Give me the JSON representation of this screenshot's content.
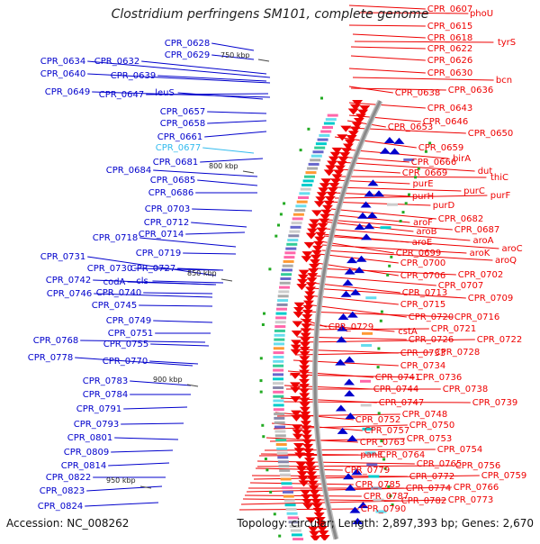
{
  "title": "Clostridium perfringens SM101, complete genome",
  "footer": {
    "accession": "Accession: NC_008262",
    "summary": "Topology: circular; Length: 2,897,393 bp; Genes: 2,670"
  },
  "colors": {
    "left_label": "#0000cc",
    "right_label": "#ee0000",
    "highlight_label": "#33bbee",
    "backbone": "#8a8a8a",
    "forward_arrow": "#0000cc",
    "reverse_arrow": "#ee0000",
    "misc_feature": "#22aa22"
  },
  "scale_ticks": [
    "750 kbp",
    "800 kbp",
    "850 kbp",
    "900 kbp",
    "950 kbp"
  ],
  "left_labels": [
    "CPR_0628",
    "CPR_0629",
    "CPR_0634",
    "CPR_0632",
    "CPR_0640",
    "CPR_0639",
    "CPR_0649",
    "CPR_0647",
    "leuS",
    "CPR_0657",
    "CPR_0658",
    "CPR_0661",
    "CPR_0677",
    "CPR_0681",
    "CPR_0684",
    "CPR_0685",
    "CPR_0686",
    "CPR_0703",
    "CPR_0712",
    "CPR_0714",
    "CPR_0718",
    "CPR_0719",
    "CPR_0731",
    "CPR_0730",
    "CPR_0727",
    "CPR_0742",
    "codA",
    "cls",
    "CPR_0746",
    "CPR_0740",
    "CPR_0745",
    "CPR_0749",
    "CPR_0751",
    "CPR_0768",
    "CPR_0755",
    "CPR_0778",
    "CPR_0770",
    "CPR_0783",
    "CPR_0784",
    "CPR_0791",
    "CPR_0793",
    "CPR_0801",
    "CPR_0809",
    "CPR_0814",
    "CPR_0822",
    "CPR_0823",
    "CPR_0824"
  ],
  "right_labels": [
    "CPR_0607",
    "phoU",
    "CPR_0615",
    "CPR_0618",
    "tyrS",
    "CPR_0622",
    "CPR_0626",
    "CPR_0630",
    "bcn",
    "CPR_0638",
    "CPR_0636",
    "CPR_0643",
    "CPR_0646",
    "CPR_0653",
    "CPR_0650",
    "CPR_0659",
    "birA",
    "CPR_0666",
    "dut",
    "CPR_0669",
    "thiC",
    "purE",
    "purC",
    "purH",
    "purF",
    "purD",
    "CPR_0682",
    "aroF",
    "CPR_0687",
    "aroB",
    "aroA",
    "aroE",
    "aroC",
    "CPR_0699",
    "aroK",
    "aroQ",
    "CPR_0700",
    "CPR_0706",
    "CPR_0702",
    "CPR_0707",
    "CPR_0713",
    "CPR_0709",
    "CPR_0715",
    "CPR_0720",
    "CPR_0716",
    "CPR_0729",
    "cstA",
    "CPR_0721",
    "CPR_0726",
    "CPR_0722",
    "CPR_0733",
    "CPR_0728",
    "CPR_0734",
    "CPR_0741",
    "CPR_0736",
    "CPR_0744",
    "CPR_0738",
    "CPR_0747",
    "CPR_0739",
    "CPR_0752",
    "CPR_0748",
    "CPR_0757",
    "CPR_0750",
    "CPR_0763",
    "CPR_0753",
    "CPR_0754",
    "panE",
    "CPR_0764",
    "CPR_0765",
    "CPR_0756",
    "CPR_0779",
    "CPR_0772",
    "CPR_0759",
    "CPR_0785",
    "CPR_0774",
    "CPR_0766",
    "CPR_0787",
    "CPR_0782",
    "CPR_0773",
    "CPR_0790"
  ]
}
